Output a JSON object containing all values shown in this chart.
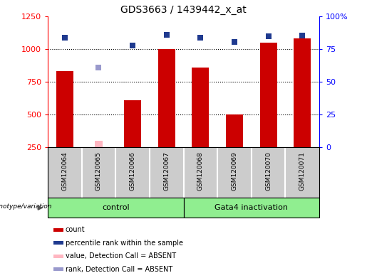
{
  "title": "GDS3663 / 1439442_x_at",
  "samples": [
    "GSM120064",
    "GSM120065",
    "GSM120066",
    "GSM120067",
    "GSM120068",
    "GSM120069",
    "GSM120070",
    "GSM120071"
  ],
  "count_values": [
    830,
    null,
    610,
    1000,
    860,
    500,
    1050,
    1080
  ],
  "count_absent_values": [
    null,
    300,
    null,
    null,
    null,
    null,
    null,
    null
  ],
  "percentile_values": [
    1090,
    null,
    1030,
    1110,
    1090,
    1055,
    1100,
    1105
  ],
  "percentile_absent_values": [
    null,
    860,
    null,
    null,
    null,
    null,
    null,
    null
  ],
  "ylim_left": [
    250,
    1250
  ],
  "ylim_right": [
    0,
    100
  ],
  "yticks_left": [
    250,
    500,
    750,
    1000,
    1250
  ],
  "yticks_right": [
    0,
    25,
    50,
    75,
    100
  ],
  "bar_color": "#CC0000",
  "bar_absent_color": "#FFB6C1",
  "dot_color": "#1F3A8F",
  "dot_absent_color": "#9999CC",
  "sample_bg_color": "#CCCCCC",
  "group_color": "#90EE90",
  "groups": [
    {
      "label": "control",
      "indices": [
        0,
        1,
        2,
        3
      ]
    },
    {
      "label": "Gata4 inactivation",
      "indices": [
        4,
        5,
        6,
        7
      ]
    }
  ],
  "group_label_text": "genotype/variation",
  "legend_items": [
    {
      "label": "count",
      "color": "#CC0000"
    },
    {
      "label": "percentile rank within the sample",
      "color": "#1F3A8F"
    },
    {
      "label": "value, Detection Call = ABSENT",
      "color": "#FFB6C1"
    },
    {
      "label": "rank, Detection Call = ABSENT",
      "color": "#9999CC"
    }
  ],
  "bar_width": 0.5,
  "dot_size": 35,
  "gridlines": [
    500,
    750,
    1000
  ]
}
